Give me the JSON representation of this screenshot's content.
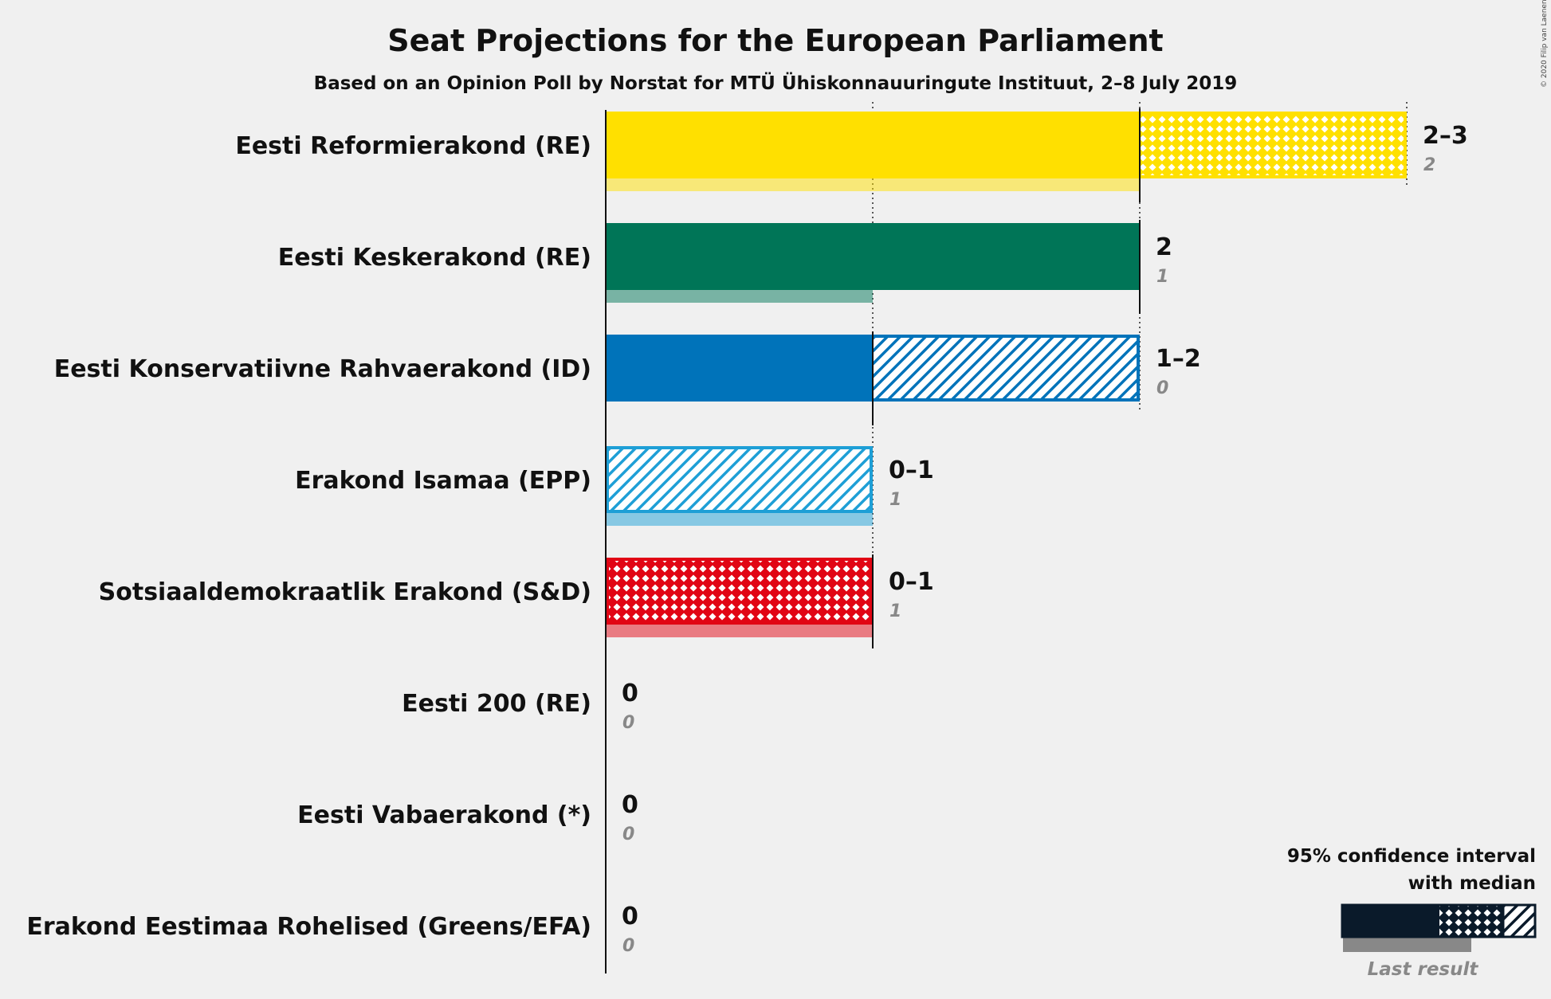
{
  "title": "Seat Projections for the European Parliament",
  "subtitle": "Based on an Opinion Poll by Norstat for MTÜ Ühiskonnauuringute Instituut, 2–8 July 2019",
  "copyright": "© 2020 Filip van Laenen",
  "legend": {
    "line1": "95% confidence interval",
    "line2": "with median",
    "last_result": "Last result"
  },
  "chart_data": {
    "type": "bar",
    "orientation": "horizontal",
    "title": "Seat Projections for the European Parliament",
    "subtitle": "Based on an Opinion Poll by Norstat for MTÜ Ühiskonnauuringute Instituut, 2–8 July 2019",
    "xlim": [
      0,
      3
    ],
    "gridlines": [
      1,
      2,
      3
    ],
    "categories": [
      "Eesti Reformierakond (RE)",
      "Eesti Keskerakond (RE)",
      "Eesti Konservatiivne Rahvaerakond (ID)",
      "Erakond Isamaa (EPP)",
      "Sotsiaaldemokraatlik Erakond (S&D)",
      "Eesti 200 (RE)",
      "Eesti Vabaerakond (*)",
      "Erakond Eestimaa Rohelised (Greens/EFA)"
    ],
    "parties": [
      {
        "name": "Eesti Reformierakond (RE)",
        "low": 2,
        "median": 2,
        "high": 3,
        "range_label": "2–3",
        "last_result": 2,
        "last_label": "2",
        "color": "#FFE000",
        "pattern": "cross"
      },
      {
        "name": "Eesti Keskerakond (RE)",
        "low": 2,
        "median": 2,
        "high": 2,
        "range_label": "2",
        "last_result": 1,
        "last_label": "1",
        "color": "#007557",
        "pattern": "none"
      },
      {
        "name": "Eesti Konservatiivne Rahvaerakond (ID)",
        "low": 1,
        "median": 1,
        "high": 2,
        "range_label": "1–2",
        "last_result": 0,
        "last_label": "0",
        "color": "#0073BA",
        "pattern": "diagonal"
      },
      {
        "name": "Erakond Isamaa (EPP)",
        "low": 0,
        "median": 0,
        "high": 1,
        "range_label": "0–1",
        "last_result": 1,
        "last_label": "1",
        "color": "#1E9FD6",
        "pattern": "diagonal"
      },
      {
        "name": "Sotsiaaldemokraatlik Erakond (S&D)",
        "low": 0,
        "median": 1,
        "high": 1,
        "range_label": "0–1",
        "last_result": 1,
        "last_label": "1",
        "color": "#E10514",
        "pattern": "cross"
      },
      {
        "name": "Eesti 200 (RE)",
        "low": 0,
        "median": 0,
        "high": 0,
        "range_label": "0",
        "last_result": 0,
        "last_label": "0",
        "color": "#31758A",
        "pattern": "none"
      },
      {
        "name": "Eesti Vabaerakond (*)",
        "low": 0,
        "median": 0,
        "high": 0,
        "range_label": "0",
        "last_result": 0,
        "last_label": "0",
        "color": "#999999",
        "pattern": "none"
      },
      {
        "name": "Erakond Eestimaa Rohelised (Greens/EFA)",
        "low": 0,
        "median": 0,
        "high": 0,
        "range_label": "0",
        "last_result": 0,
        "last_label": "0",
        "color": "#83C033",
        "pattern": "none"
      }
    ]
  }
}
